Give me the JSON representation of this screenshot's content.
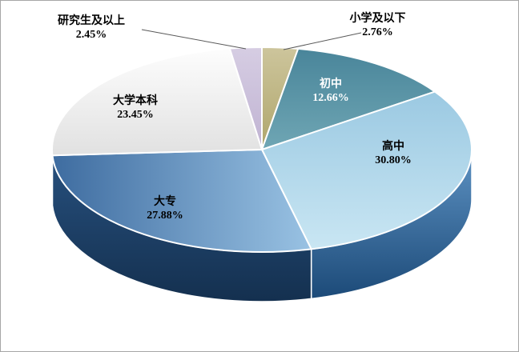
{
  "chart": {
    "background": "#FFFFFF",
    "border_color": "#A6A6A6",
    "label_font_color": "#000000",
    "leader_line_color": "#595959"
  },
  "chart_data": {
    "type": "pie",
    "effect": "3d",
    "title": "",
    "legend_position": "none",
    "unit": "%",
    "start_angle_deg": -90,
    "direction": "clockwise",
    "categories": [
      "小学及以下",
      "初中",
      "高中",
      "大专",
      "大学本科",
      "研究生及以上"
    ],
    "values": [
      2.76,
      12.66,
      30.8,
      27.88,
      23.45,
      2.45
    ],
    "slices": [
      {
        "label": "小学及以下",
        "value": 2.76,
        "pct_text": "2.76%",
        "label_placement": "outside",
        "label_color": "#000000",
        "top": [
          "#CDC59C",
          "#AFA66C"
        ],
        "top_dir": "v",
        "side": null
      },
      {
        "label": "初中",
        "value": 12.66,
        "pct_text": "12.66%",
        "label_placement": "inside",
        "label_color": "#FFFFFF",
        "top": [
          "#49859A",
          "#6FA6B4"
        ],
        "top_dir": "v",
        "side": null
      },
      {
        "label": "高中",
        "value": 30.8,
        "pct_text": "30.80%",
        "label_placement": "inside",
        "label_color": "#000000",
        "top": [
          "#9BC9E2",
          "#C9E6F3"
        ],
        "top_dir": "v",
        "side": [
          "#5E93C4",
          "#1C4A78"
        ]
      },
      {
        "label": "大专",
        "value": 27.88,
        "pct_text": "27.88%",
        "label_placement": "inside",
        "label_color": "#000000",
        "top": [
          "#99C2E3",
          "#3E6CA0"
        ],
        "top_dir": "hr",
        "side": [
          "#27507E",
          "#14304F"
        ]
      },
      {
        "label": "大学本科",
        "value": 23.45,
        "pct_text": "23.45%",
        "label_placement": "inside",
        "label_color": "#000000",
        "top": [
          "#FDFDFD",
          "#E1E1E1"
        ],
        "top_dir": "v",
        "side": [
          "#CFCFCF",
          "#ADADAD"
        ]
      },
      {
        "label": "研究生及以上",
        "value": 2.45,
        "pct_text": "2.45%",
        "label_placement": "outside",
        "label_color": "#000000",
        "top": [
          "#D6CDE3",
          "#C0B3D2"
        ],
        "top_dir": "v",
        "side": null
      }
    ]
  }
}
